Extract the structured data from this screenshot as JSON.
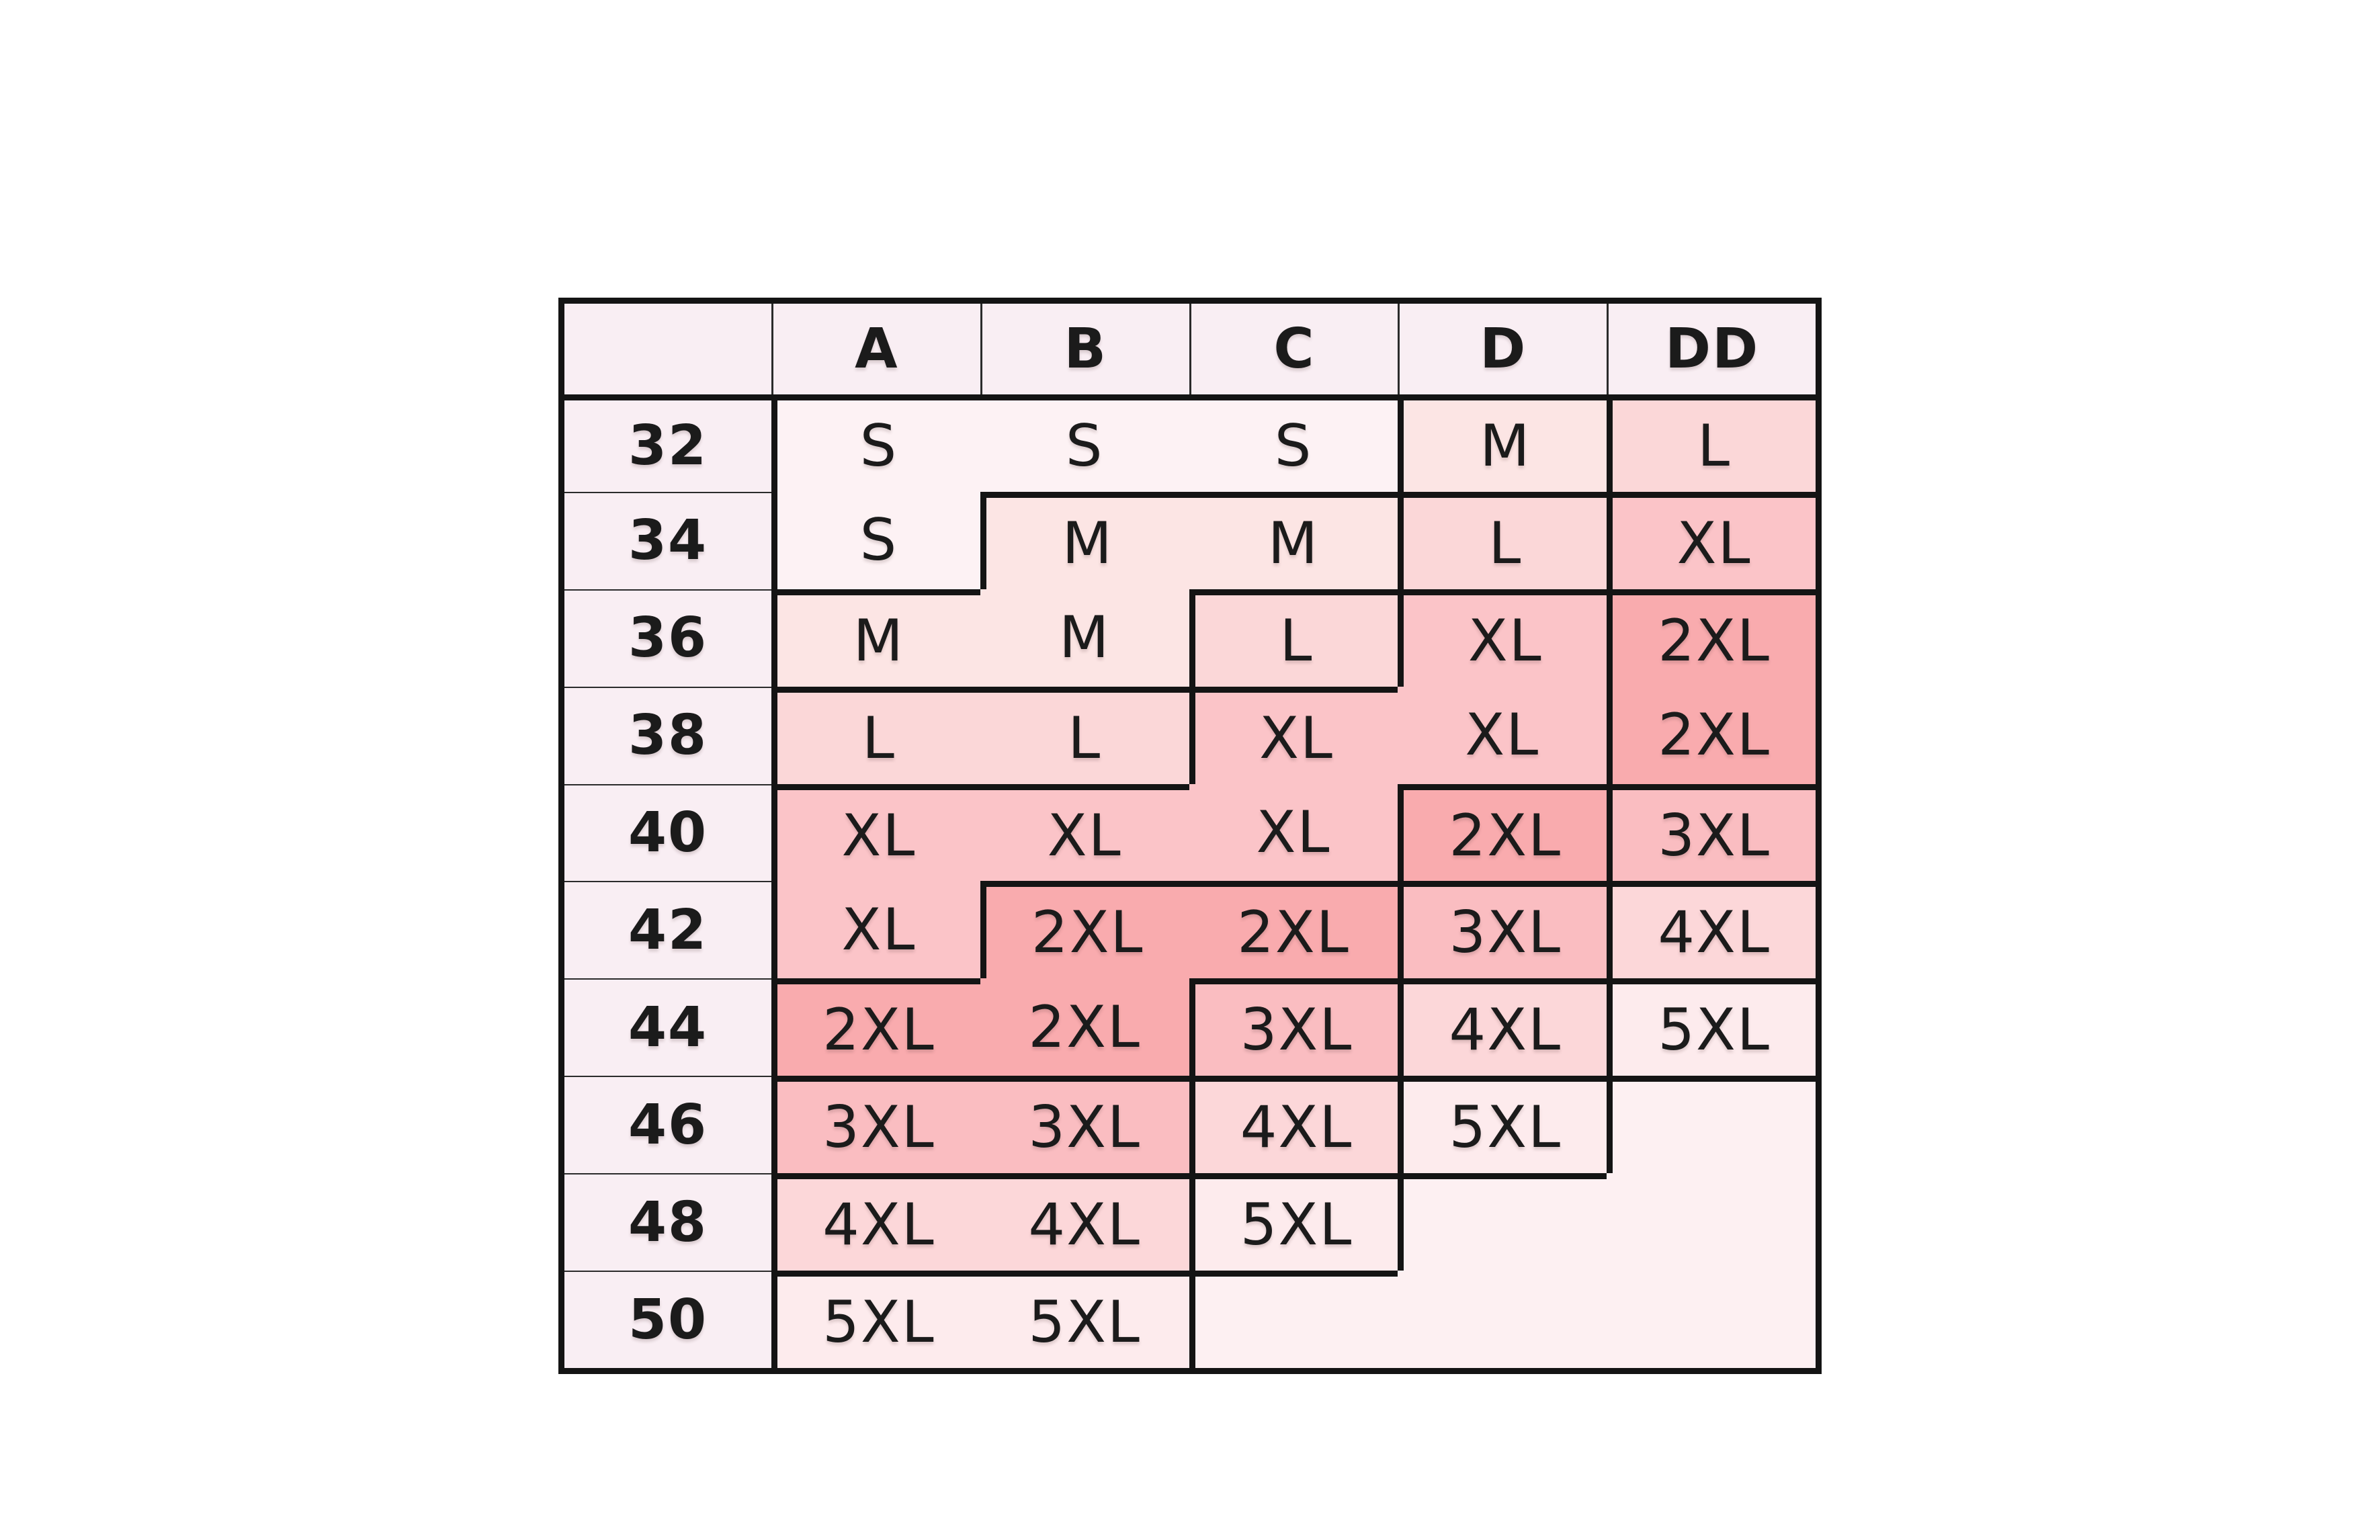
{
  "page": {
    "background": "#ffffff"
  },
  "chart_data": {
    "type": "table",
    "subtype": "size-chart-heatmap",
    "title": "",
    "corner_label": "",
    "col_labels": [
      "A",
      "B",
      "C",
      "D",
      "DD"
    ],
    "row_labels": [
      "32",
      "34",
      "36",
      "38",
      "40",
      "42",
      "44",
      "46",
      "48",
      "50"
    ],
    "values": [
      [
        "S",
        "S",
        "S",
        "M",
        "L"
      ],
      [
        "S",
        "M",
        "M",
        "L",
        "XL"
      ],
      [
        "M",
        "M",
        "L",
        "XL",
        "2XL"
      ],
      [
        "L",
        "L",
        "XL",
        "XL",
        "2XL"
      ],
      [
        "XL",
        "XL",
        "XL",
        "2XL",
        "3XL"
      ],
      [
        "XL",
        "2XL",
        "2XL",
        "3XL",
        "4XL"
      ],
      [
        "2XL",
        "2XL",
        "3XL",
        "4XL",
        "5XL"
      ],
      [
        "3XL",
        "3XL",
        "4XL",
        "5XL",
        ""
      ],
      [
        "4XL",
        "4XL",
        "5XL",
        "",
        ""
      ],
      [
        "5XL",
        "5XL",
        "",
        "",
        ""
      ]
    ],
    "legend_position": "none",
    "grid_style": "thick step outline between different size regions, no lines inside merged same-size regions"
  },
  "colors": {
    "header_bg": "#f9eef3",
    "label_bg": "#f9eef3",
    "empty_fill": "#fdf0f2",
    "border_thick": "#141414",
    "border_thin": "#2b2b2b",
    "text": "#1b1b1b",
    "size_fills": {
      "S": "#fdf2f4",
      "M": "#fce5e4",
      "L": "#fbd7d8",
      "XL": "#fbc4c8",
      "2XL": "#f9abae",
      "3XL": "#fabdc1",
      "4XL": "#fcd7d9",
      "5XL": "#fdebed"
    }
  }
}
